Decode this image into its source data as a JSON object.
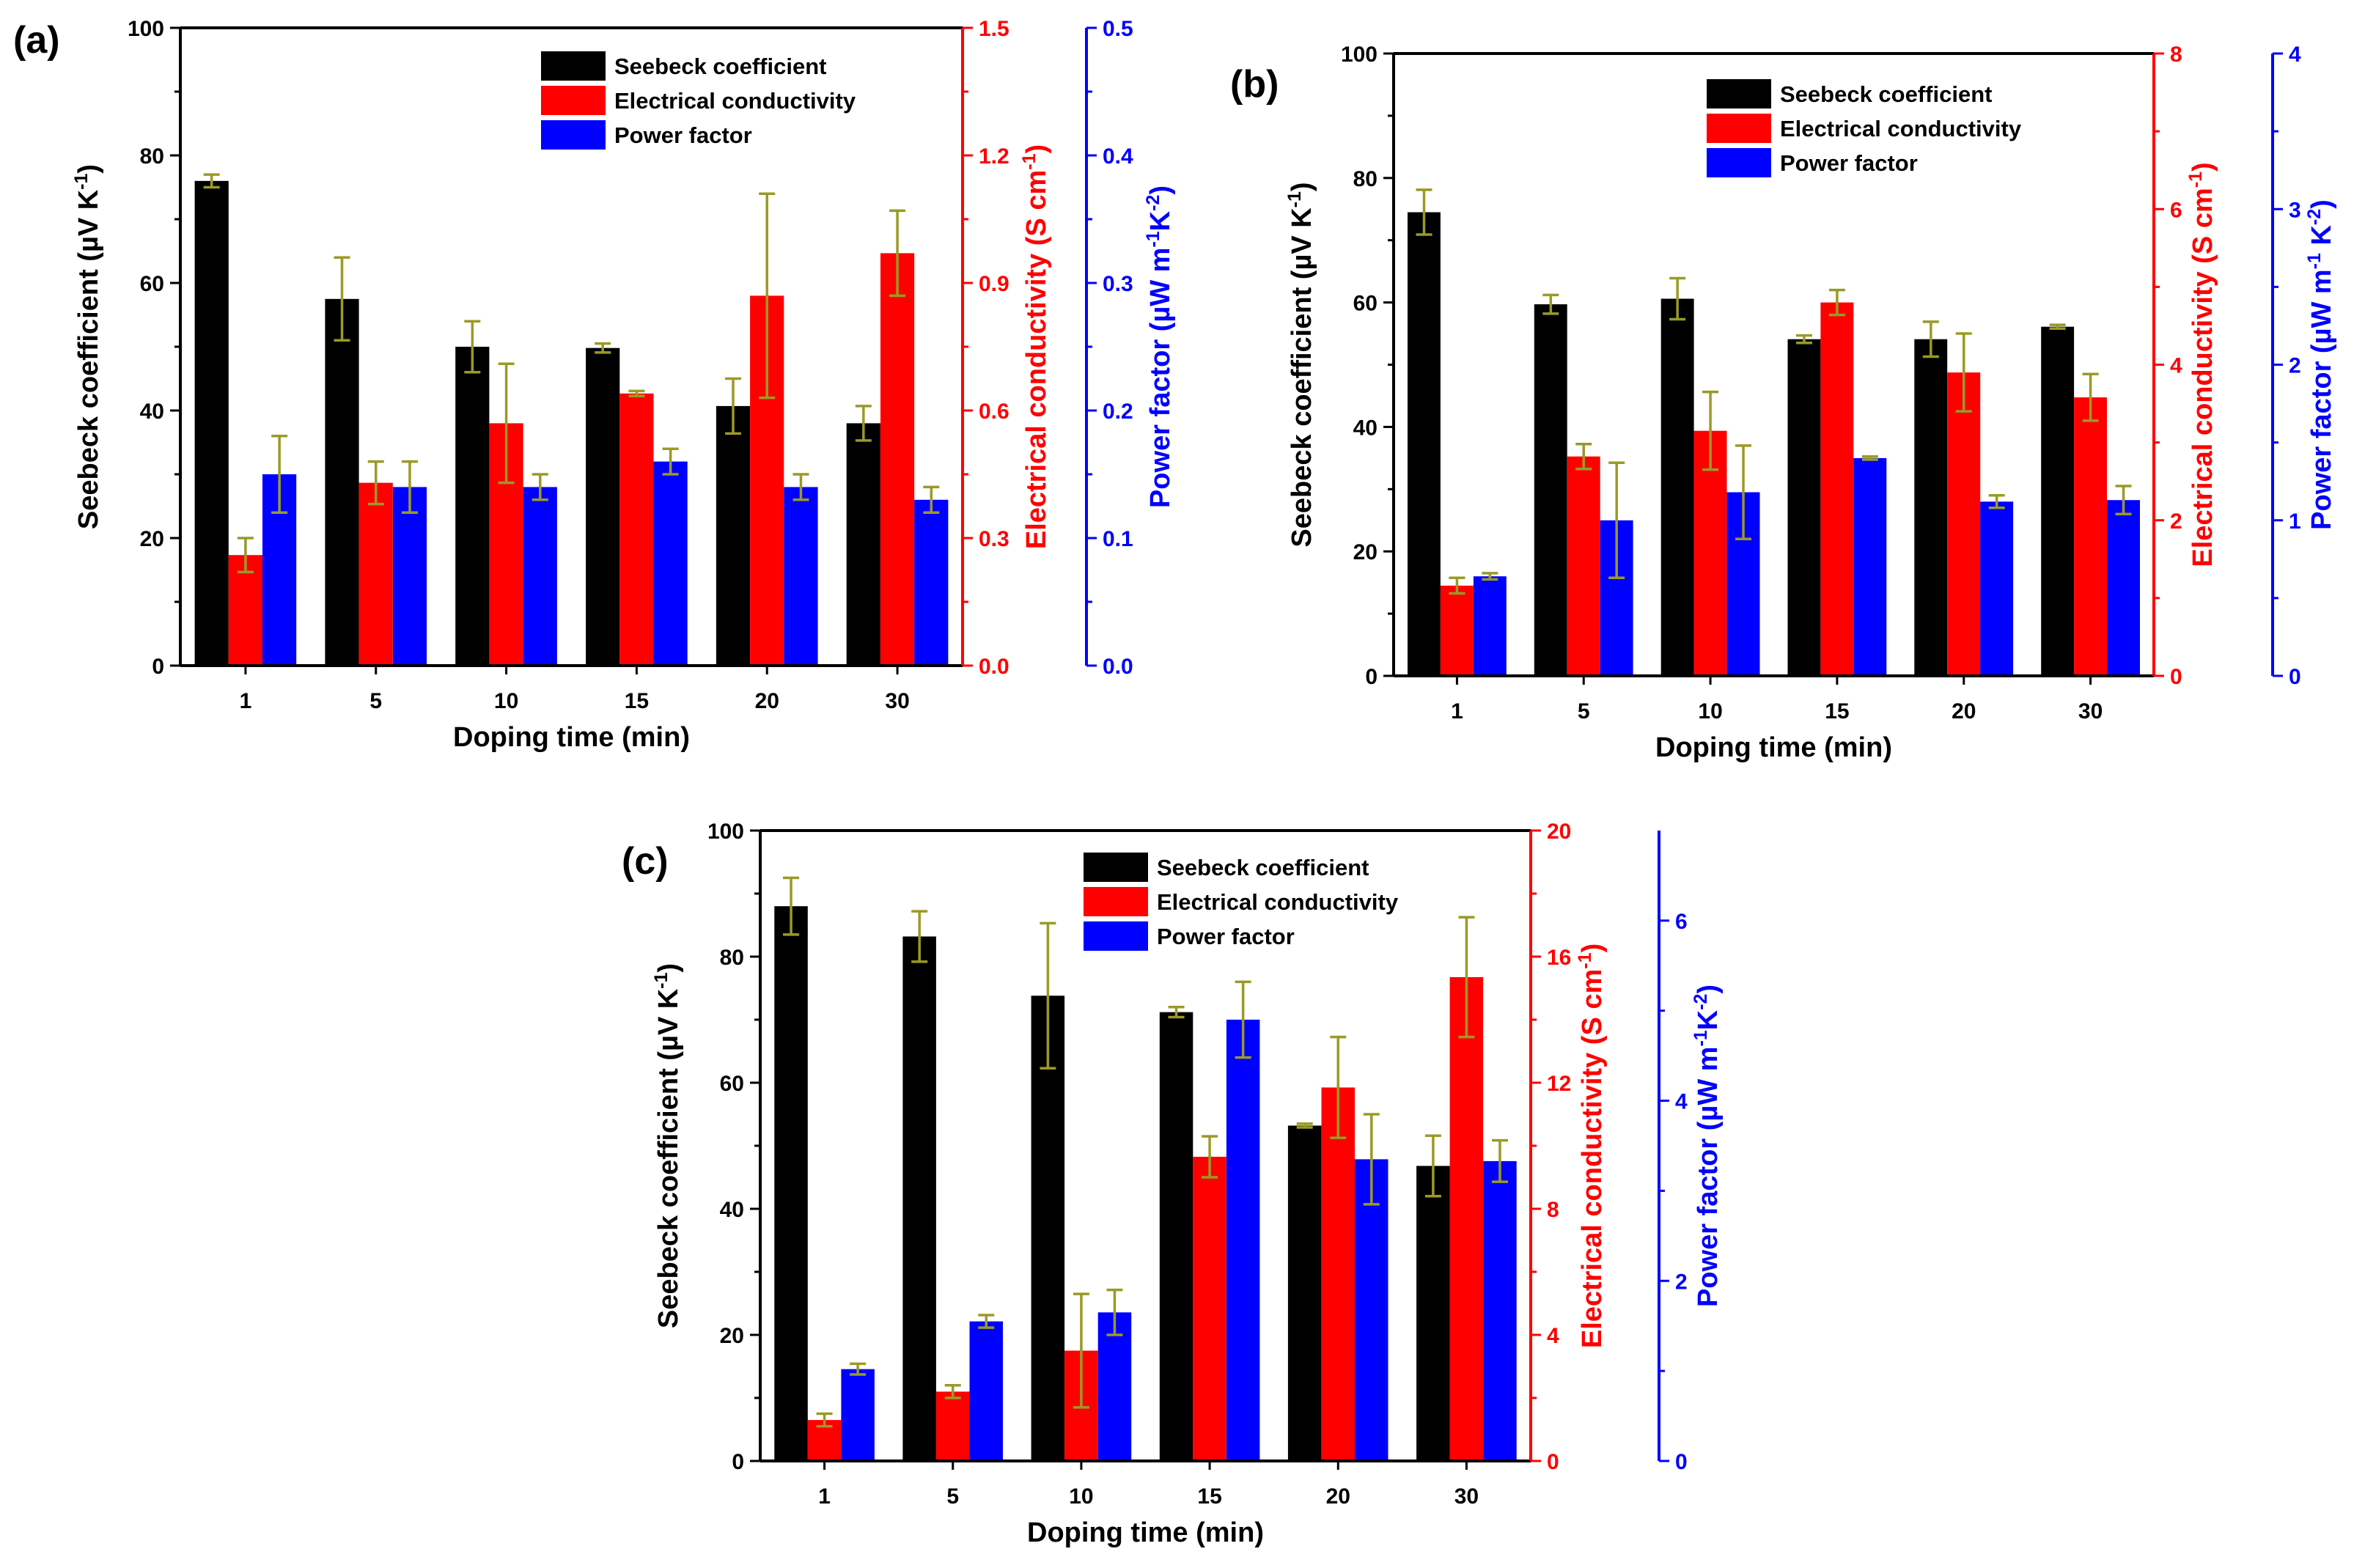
{
  "figure": {
    "panels_order": [
      "a",
      "b",
      "c"
    ]
  },
  "colors": {
    "seebeck": "#000000",
    "conductivity": "#ff0000",
    "power_factor": "#0000ff",
    "error_bar": "#9a9a26",
    "axis_left": "#000000",
    "axis_mid": "#ff0000",
    "axis_right": "#0000ff"
  },
  "chart_data": [
    {
      "type": "bar",
      "panel_label": "(a)",
      "categories": [
        "1",
        "5",
        "10",
        "15",
        "20",
        "30"
      ],
      "xlabel": "Doping time (min)",
      "axes": [
        {
          "id": "left",
          "label": "Seebeck coefficient (µV K-1)",
          "ylim": [
            0,
            100
          ],
          "ticks": [
            0,
            20,
            40,
            60,
            80,
            100
          ],
          "tick_labels": [
            "0",
            "20",
            "40",
            "60",
            "80",
            "100"
          ]
        },
        {
          "id": "mid",
          "label": "Electrical conductivity (S cm-1)",
          "ylim": [
            0,
            1.5
          ],
          "ticks": [
            0,
            0.3,
            0.6,
            0.9,
            1.2,
            1.5
          ],
          "tick_labels": [
            "0.0",
            "0.3",
            "0.6",
            "0.9",
            "1.2",
            "1.5"
          ]
        },
        {
          "id": "right",
          "label": "Power factor (µW m-1K-2)",
          "ylim": [
            0,
            0.5
          ],
          "ticks": [
            0,
            0.1,
            0.2,
            0.3,
            0.4,
            0.5
          ],
          "tick_labels": [
            "0.0",
            "0.1",
            "0.2",
            "0.3",
            "0.4",
            "0.5"
          ]
        }
      ],
      "series": [
        {
          "name": "Seebeck coefficient",
          "axis": "left",
          "values": [
            76,
            57.5,
            50,
            49.8,
            40.7,
            38
          ],
          "errors": [
            1,
            6.5,
            4,
            0.7,
            4.3,
            2.7
          ]
        },
        {
          "name": "Electrical conductivity",
          "axis": "mid",
          "values": [
            0.26,
            0.43,
            0.57,
            0.64,
            0.87,
            0.97
          ],
          "errors": [
            0.04,
            0.05,
            0.14,
            0.006,
            0.24,
            0.1
          ]
        },
        {
          "name": "Power factor",
          "axis": "right",
          "values": [
            0.15,
            0.14,
            0.14,
            0.16,
            0.14,
            0.13
          ],
          "errors": [
            0.03,
            0.02,
            0.01,
            0.01,
            0.01,
            0.01
          ]
        }
      ],
      "legend": [
        "Seebeck coefficient",
        "Electrical conductivity",
        "Power factor"
      ],
      "legend_position": "top-right"
    },
    {
      "type": "bar",
      "panel_label": "(b)",
      "categories": [
        "1",
        "5",
        "10",
        "15",
        "20",
        "30"
      ],
      "xlabel": "Doping time (min)",
      "axes": [
        {
          "id": "left",
          "label": "Seebeck coefficient (µV K-1)",
          "ylim": [
            0,
            100
          ],
          "ticks": [
            0,
            20,
            40,
            60,
            80,
            100
          ],
          "tick_labels": [
            "0",
            "20",
            "40",
            "60",
            "80",
            "100"
          ]
        },
        {
          "id": "mid",
          "label": "Electrical conductivity (S cm-1)",
          "ylim": [
            0,
            8
          ],
          "ticks": [
            0,
            2,
            4,
            6,
            8
          ],
          "tick_labels": [
            "0",
            "2",
            "4",
            "6",
            "8"
          ]
        },
        {
          "id": "right",
          "label": "Power factor (µW m-1 K-2)",
          "ylim": [
            0,
            4
          ],
          "ticks": [
            0,
            1,
            2,
            3,
            4
          ],
          "tick_labels": [
            "0",
            "1",
            "2",
            "3",
            "4"
          ]
        }
      ],
      "series": [
        {
          "name": "Seebeck coefficient",
          "axis": "left",
          "values": [
            74.5,
            59.7,
            60.6,
            54.1,
            54.1,
            56.1
          ],
          "errors": [
            3.6,
            1.5,
            3.3,
            0.6,
            2.8,
            0.3
          ]
        },
        {
          "name": "Electrical conductivity",
          "axis": "mid",
          "values": [
            1.16,
            2.82,
            3.15,
            4.8,
            3.9,
            3.58
          ],
          "errors": [
            0.1,
            0.16,
            0.5,
            0.16,
            0.5,
            0.3
          ]
        },
        {
          "name": "Power factor",
          "axis": "right",
          "values": [
            0.64,
            1.0,
            1.18,
            1.4,
            1.12,
            1.13
          ],
          "errors": [
            0.02,
            0.37,
            0.3,
            0.01,
            0.04,
            0.09
          ]
        }
      ],
      "legend": [
        "Seebeck coefficient",
        "Electrical conductivity",
        "Power factor"
      ],
      "legend_position": "top-right"
    },
    {
      "type": "bar",
      "panel_label": "(c)",
      "categories": [
        "1",
        "5",
        "10",
        "15",
        "20",
        "30"
      ],
      "xlabel": "Doping time (min)",
      "axes": [
        {
          "id": "left",
          "label": "Seebeck coefficient (µV K-1)",
          "ylim": [
            0,
            100
          ],
          "ticks": [
            0,
            20,
            40,
            60,
            80,
            100
          ],
          "tick_labels": [
            "0",
            "20",
            "40",
            "60",
            "80",
            "100"
          ]
        },
        {
          "id": "mid",
          "label": "Electrical conductivity (S cm-1)",
          "ylim": [
            0,
            20
          ],
          "ticks": [
            0,
            4,
            8,
            12,
            16,
            20
          ],
          "tick_labels": [
            "0",
            "4",
            "8",
            "12",
            "16",
            "20"
          ]
        },
        {
          "id": "right",
          "label": "Power factor (µW m-1K-2)",
          "ylim": [
            0,
            7
          ],
          "ticks": [
            0,
            2,
            4,
            6
          ],
          "tick_labels": [
            "0",
            "2",
            "4",
            "6"
          ]
        }
      ],
      "series": [
        {
          "name": "Seebeck coefficient",
          "axis": "left",
          "values": [
            88,
            83.2,
            73.8,
            71.2,
            53.2,
            46.8
          ],
          "errors": [
            4.5,
            4,
            11.5,
            0.8,
            0.3,
            4.8
          ]
        },
        {
          "name": "Electrical conductivity",
          "axis": "mid",
          "values": [
            1.3,
            2.2,
            3.5,
            9.65,
            11.85,
            15.35
          ],
          "errors": [
            0.2,
            0.2,
            1.8,
            0.65,
            1.6,
            1.9
          ]
        },
        {
          "name": "Power factor",
          "axis": "right",
          "values": [
            1.02,
            1.55,
            1.65,
            4.9,
            3.35,
            3.33
          ],
          "errors": [
            0.06,
            0.07,
            0.25,
            0.42,
            0.5,
            0.23
          ]
        }
      ],
      "legend": [
        "Seebeck coefficient",
        "Electrical conductivity",
        "Power factor"
      ],
      "legend_position": "top-center"
    }
  ]
}
